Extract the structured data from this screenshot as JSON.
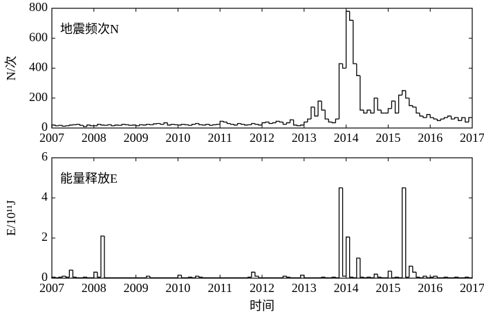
{
  "chart_data": [
    {
      "type": "step",
      "annotation": "地震频次N",
      "ylabel": "N/次",
      "color": "#000000",
      "xlim": [
        2007,
        2017
      ],
      "xticks": [
        2007,
        2008,
        2009,
        2010,
        2011,
        2012,
        2013,
        2014,
        2015,
        2016,
        2017
      ],
      "ylim": [
        0,
        800
      ],
      "yticks": [
        0,
        200,
        400,
        600,
        800
      ],
      "x": [
        2007,
        2007.083,
        2007.167,
        2007.25,
        2007.333,
        2007.417,
        2007.5,
        2007.583,
        2007.667,
        2007.75,
        2007.833,
        2007.917,
        2008,
        2008.083,
        2008.167,
        2008.25,
        2008.333,
        2008.417,
        2008.5,
        2008.583,
        2008.667,
        2008.75,
        2008.833,
        2008.917,
        2009,
        2009.083,
        2009.167,
        2009.25,
        2009.333,
        2009.417,
        2009.5,
        2009.583,
        2009.667,
        2009.75,
        2009.833,
        2009.917,
        2010,
        2010.083,
        2010.167,
        2010.25,
        2010.333,
        2010.417,
        2010.5,
        2010.583,
        2010.667,
        2010.75,
        2010.833,
        2010.917,
        2011,
        2011.083,
        2011.167,
        2011.25,
        2011.333,
        2011.417,
        2011.5,
        2011.583,
        2011.667,
        2011.75,
        2011.833,
        2011.917,
        2012,
        2012.083,
        2012.167,
        2012.25,
        2012.333,
        2012.417,
        2012.5,
        2012.583,
        2012.667,
        2012.75,
        2012.833,
        2012.917,
        2013,
        2013.083,
        2013.167,
        2013.25,
        2013.333,
        2013.417,
        2013.5,
        2013.583,
        2013.667,
        2013.75,
        2013.833,
        2013.917,
        2014,
        2014.083,
        2014.167,
        2014.25,
        2014.333,
        2014.417,
        2014.5,
        2014.583,
        2014.667,
        2014.75,
        2014.833,
        2014.917,
        2015,
        2015.083,
        2015.167,
        2015.25,
        2015.333,
        2015.417,
        2015.5,
        2015.583,
        2015.667,
        2015.75,
        2015.833,
        2015.917,
        2016,
        2016.083,
        2016.167,
        2016.25,
        2016.333,
        2016.417,
        2016.5,
        2016.583,
        2016.667,
        2016.75,
        2016.833,
        2016.917
      ],
      "values": [
        20,
        15,
        18,
        12,
        15,
        20,
        22,
        25,
        18,
        10,
        20,
        15,
        15,
        25,
        20,
        18,
        22,
        15,
        20,
        18,
        25,
        22,
        18,
        20,
        15,
        22,
        20,
        25,
        22,
        28,
        30,
        25,
        35,
        20,
        25,
        22,
        20,
        25,
        22,
        18,
        25,
        30,
        22,
        20,
        25,
        18,
        22,
        25,
        45,
        40,
        30,
        25,
        20,
        30,
        25,
        20,
        22,
        30,
        25,
        20,
        35,
        40,
        30,
        35,
        45,
        40,
        25,
        35,
        55,
        20,
        15,
        20,
        40,
        60,
        140,
        80,
        180,
        120,
        60,
        40,
        35,
        60,
        430,
        400,
        780,
        720,
        430,
        350,
        120,
        100,
        120,
        100,
        200,
        120,
        100,
        100,
        130,
        180,
        100,
        220,
        250,
        200,
        150,
        140,
        100,
        80,
        70,
        90,
        70,
        60,
        50,
        60,
        70,
        80,
        60,
        70,
        50,
        70,
        40,
        70
      ]
    },
    {
      "type": "step",
      "annotation": "能量释放E",
      "ylabel": "E/10¹¹J",
      "xlabel": "时间",
      "color": "#000000",
      "xlim": [
        2007,
        2017
      ],
      "xticks": [
        2007,
        2008,
        2009,
        2010,
        2011,
        2012,
        2013,
        2014,
        2015,
        2016,
        2017
      ],
      "ylim": [
        0,
        6
      ],
      "yticks": [
        0,
        2,
        4,
        6
      ],
      "x": [
        2007,
        2007.083,
        2007.167,
        2007.25,
        2007.333,
        2007.417,
        2007.5,
        2007.583,
        2007.667,
        2007.75,
        2007.833,
        2007.917,
        2008,
        2008.083,
        2008.167,
        2008.25,
        2008.333,
        2008.417,
        2008.5,
        2008.583,
        2008.667,
        2008.75,
        2008.833,
        2008.917,
        2009,
        2009.083,
        2009.167,
        2009.25,
        2009.333,
        2009.417,
        2009.5,
        2009.583,
        2009.667,
        2009.75,
        2009.833,
        2009.917,
        2010,
        2010.083,
        2010.167,
        2010.25,
        2010.333,
        2010.417,
        2010.5,
        2010.583,
        2010.667,
        2010.75,
        2010.833,
        2010.917,
        2011,
        2011.083,
        2011.167,
        2011.25,
        2011.333,
        2011.417,
        2011.5,
        2011.583,
        2011.667,
        2011.75,
        2011.833,
        2011.917,
        2012,
        2012.083,
        2012.167,
        2012.25,
        2012.333,
        2012.417,
        2012.5,
        2012.583,
        2012.667,
        2012.75,
        2012.833,
        2012.917,
        2013,
        2013.083,
        2013.167,
        2013.25,
        2013.333,
        2013.417,
        2013.5,
        2013.583,
        2013.667,
        2013.75,
        2013.833,
        2013.917,
        2014,
        2014.083,
        2014.167,
        2014.25,
        2014.333,
        2014.417,
        2014.5,
        2014.583,
        2014.667,
        2014.75,
        2014.833,
        2014.917,
        2015,
        2015.083,
        2015.167,
        2015.25,
        2015.333,
        2015.417,
        2015.5,
        2015.583,
        2015.667,
        2015.75,
        2015.833,
        2015.917,
        2016,
        2016.083,
        2016.167,
        2016.25,
        2016.333,
        2016.417,
        2016.5,
        2016.583,
        2016.667,
        2016.75,
        2016.833,
        2016.917
      ],
      "values": [
        0.05,
        0.02,
        0.05,
        0.1,
        0.05,
        0.4,
        0.05,
        0.02,
        0.02,
        0.05,
        0.02,
        0.02,
        0.3,
        0.05,
        2.1,
        0.02,
        0.02,
        0.02,
        0.02,
        0.02,
        0.02,
        0.02,
        0.02,
        0.02,
        0.02,
        0.02,
        0.02,
        0.1,
        0.02,
        0.02,
        0.02,
        0.02,
        0.02,
        0.02,
        0.02,
        0.02,
        0.15,
        0.02,
        0.02,
        0.05,
        0.02,
        0.1,
        0.05,
        0.02,
        0.02,
        0.02,
        0.02,
        0.02,
        0.02,
        0.02,
        0.02,
        0.02,
        0.02,
        0.02,
        0.02,
        0.02,
        0.05,
        0.3,
        0.1,
        0.02,
        0.02,
        0.02,
        0.02,
        0.02,
        0.02,
        0.02,
        0.1,
        0.05,
        0.02,
        0.02,
        0.02,
        0.15,
        0.02,
        0.02,
        0.02,
        0.02,
        0.02,
        0.05,
        0.02,
        0.02,
        0.05,
        0.02,
        4.5,
        0.1,
        2.05,
        0.05,
        0.02,
        1.0,
        0.05,
        0.02,
        0.05,
        0.02,
        0.2,
        0.05,
        0.02,
        0.02,
        0.35,
        0.02,
        0.05,
        0.02,
        4.5,
        0.05,
        0.6,
        0.3,
        0.05,
        0.02,
        0.1,
        0.02,
        0.05,
        0.1,
        0.02,
        0.02,
        0.05,
        0.02,
        0.02,
        0.05,
        0.02,
        0.02,
        0.05,
        0.02
      ]
    }
  ]
}
